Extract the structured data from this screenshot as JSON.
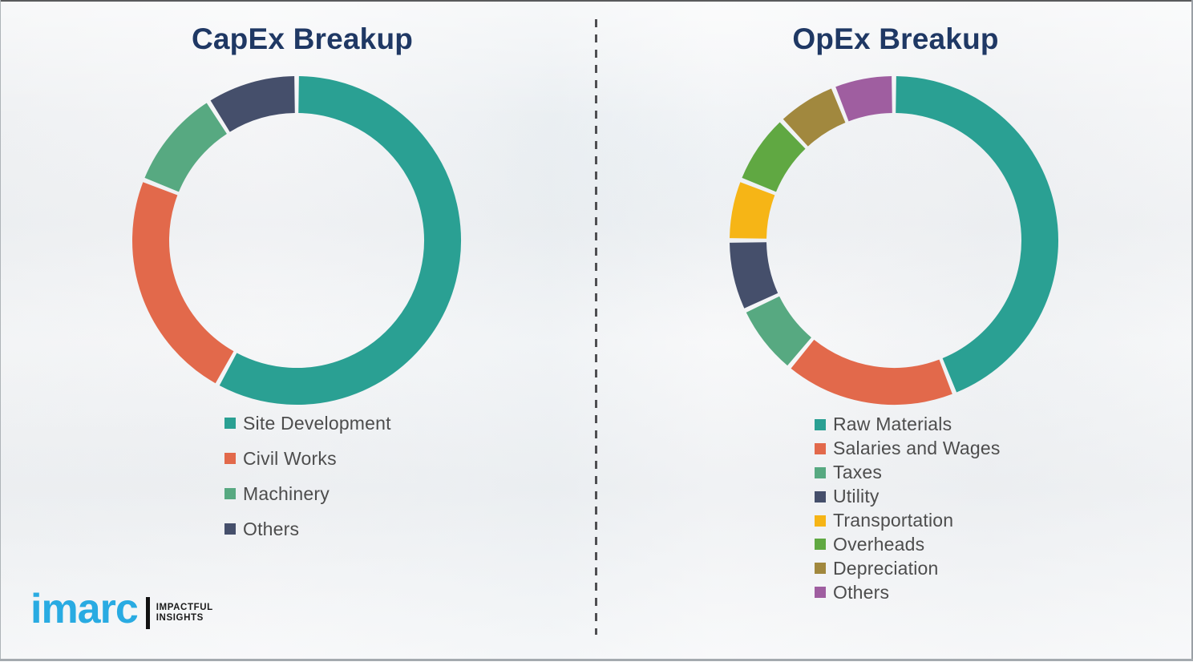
{
  "frame": {
    "background_color": "#f2f3f5",
    "title_color": "#1f3864",
    "legend_text_color": "#4d4d4d"
  },
  "chart_data": [
    {
      "type": "pie",
      "subtype": "donut",
      "title": "CapEx Breakup",
      "legend_position": "below-left",
      "categories": [
        "Site Development",
        "Civil Works",
        "Machinery",
        "Others"
      ],
      "values": [
        58,
        23,
        10,
        9
      ],
      "unit": "percent-estimated",
      "colors": [
        "#2aa093",
        "#e2694b",
        "#57a981",
        "#454f6b"
      ]
    },
    {
      "type": "pie",
      "subtype": "donut",
      "title": "OpEx Breakup",
      "legend_position": "below-left",
      "categories": [
        "Raw Materials",
        "Salaries and Wages",
        "Taxes",
        "Utility",
        "Transportation",
        "Overheads",
        "Depreciation",
        "Others"
      ],
      "values": [
        44,
        17,
        7,
        7,
        6,
        7,
        6,
        6
      ],
      "unit": "percent-estimated",
      "colors": [
        "#2aa093",
        "#e2694b",
        "#57a981",
        "#454f6b",
        "#f6b516",
        "#60a842",
        "#a1883e",
        "#9f5ea0"
      ]
    }
  ],
  "logo": {
    "word": "imarc",
    "word_color": "#29abe2",
    "bar_color": "#111111",
    "tagline_line1": "IMPACTFUL",
    "tagline_line2": "INSIGHTS"
  }
}
